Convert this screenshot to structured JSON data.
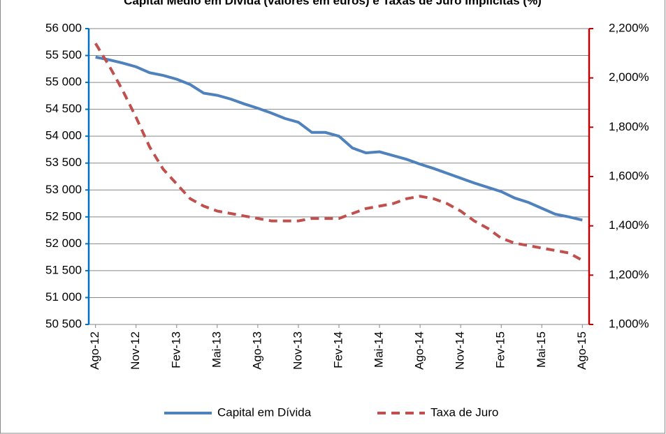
{
  "chart_data": {
    "type": "line",
    "title": "Capital Médio em Dívida (valores em euros) e Taxas de Juro Implícitas (%)",
    "categories": [
      "Ago-12",
      null,
      null,
      "Nov-12",
      null,
      null,
      "Fev-13",
      null,
      null,
      "Mai-13",
      null,
      null,
      "Ago-13",
      null,
      null,
      "Nov-13",
      null,
      null,
      "Fev-14",
      null,
      null,
      "Mai-14",
      null,
      null,
      "Ago-14",
      null,
      null,
      "Nov-14",
      null,
      null,
      "Fev-15",
      null,
      null,
      "Mai-15",
      null,
      null,
      "Ago-15"
    ],
    "series": [
      {
        "name": "Capital em Dívida",
        "color": "#4f81bd",
        "axis": "y",
        "dashed": false,
        "values": [
          55470,
          55420,
          55360,
          55290,
          55180,
          55130,
          55060,
          54960,
          54800,
          54760,
          54690,
          54600,
          54520,
          54430,
          54330,
          54260,
          54070,
          54070,
          54000,
          53780,
          53690,
          53710,
          53640,
          53570,
          53480,
          53400,
          53310,
          53220,
          53130,
          53050,
          52970,
          52850,
          52770,
          52660,
          52550,
          52500,
          52440
        ]
      },
      {
        "name": "Taxa de Juro",
        "color": "#c0504d",
        "axis": "y2",
        "dashed": true,
        "values": [
          2.14,
          2.05,
          1.95,
          1.84,
          1.72,
          1.63,
          1.57,
          1.51,
          1.48,
          1.46,
          1.45,
          1.44,
          1.43,
          1.42,
          1.42,
          1.42,
          1.43,
          1.43,
          1.43,
          1.45,
          1.47,
          1.48,
          1.49,
          1.51,
          1.52,
          1.51,
          1.49,
          1.46,
          1.42,
          1.39,
          1.35,
          1.33,
          1.32,
          1.31,
          1.3,
          1.29,
          1.26
        ]
      }
    ],
    "ylim": [
      50500,
      56000
    ],
    "yticks": [
      {
        "value": 50500,
        "label": "50 500"
      },
      {
        "value": 51000,
        "label": "51 000"
      },
      {
        "value": 51500,
        "label": "51 500"
      },
      {
        "value": 52000,
        "label": "52 000"
      },
      {
        "value": 52500,
        "label": "52 500"
      },
      {
        "value": 53000,
        "label": "53 000"
      },
      {
        "value": 53500,
        "label": "53 500"
      },
      {
        "value": 54000,
        "label": "54 000"
      },
      {
        "value": 54500,
        "label": "54 500"
      },
      {
        "value": 55000,
        "label": "55 000"
      },
      {
        "value": 55500,
        "label": "55 500"
      },
      {
        "value": 56000,
        "label": "56 000"
      }
    ],
    "y2lim": [
      1.0,
      2.2
    ],
    "y2ticks": [
      {
        "value": 1.0,
        "label": "1,000%"
      },
      {
        "value": 1.2,
        "label": "1,200%"
      },
      {
        "value": 1.4,
        "label": "1,400%"
      },
      {
        "value": 1.6,
        "label": "1,600%"
      },
      {
        "value": 1.8,
        "label": "1,800%"
      },
      {
        "value": 2.0,
        "label": "2,000%"
      },
      {
        "value": 2.2,
        "label": "2,200%"
      }
    ],
    "grid": true,
    "legend": "bottom",
    "yaxis_color": "#0070c0",
    "y2axis_color": "#c00000"
  }
}
